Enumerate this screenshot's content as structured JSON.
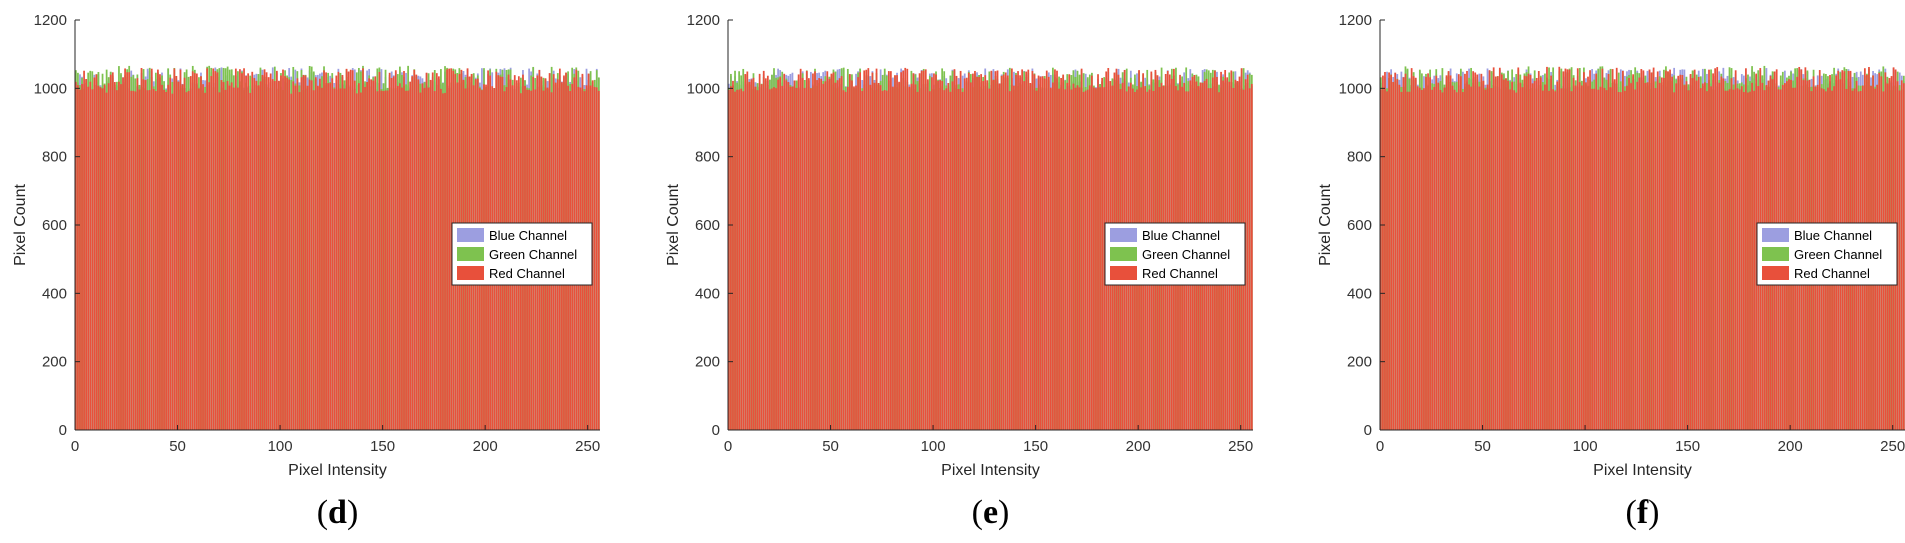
{
  "chart_data": [
    {
      "type": "bar",
      "panel_label": {
        "open": "(",
        "letter": "d",
        "close": ")"
      },
      "xlabel": "Pixel Intensity",
      "ylabel": "Pixel Count",
      "xlim": [
        0,
        256
      ],
      "ylim": [
        0,
        1200
      ],
      "xticks": [
        "0",
        "50",
        "100",
        "150",
        "200",
        "250"
      ],
      "yticks": [
        "0",
        "200",
        "400",
        "600",
        "800",
        "1000",
        "1200"
      ],
      "grid": false,
      "legend_position": "center-right",
      "bins": 256,
      "seed": 17,
      "series": [
        {
          "name": "Blue Channel",
          "color": "#9c9ee0",
          "mean": 1030,
          "spread": 32
        },
        {
          "name": "Green Channel",
          "color": "#7ec24f",
          "mean": 1030,
          "spread": 36
        },
        {
          "name": "Red Channel",
          "color": "#e8503b",
          "mean": 1022,
          "spread": 38
        }
      ]
    },
    {
      "type": "bar",
      "panel_label": {
        "open": "(",
        "letter": "e",
        "close": ")"
      },
      "xlabel": "Pixel Intensity",
      "ylabel": "Pixel Count",
      "xlim": [
        0,
        256
      ],
      "ylim": [
        0,
        1200
      ],
      "xticks": [
        "0",
        "50",
        "100",
        "150",
        "200",
        "250"
      ],
      "yticks": [
        "0",
        "200",
        "400",
        "600",
        "800",
        "1000",
        "1200"
      ],
      "grid": false,
      "legend_position": "center-right",
      "bins": 256,
      "seed": 53,
      "series": [
        {
          "name": "Blue Channel",
          "color": "#9c9ee0",
          "mean": 1028,
          "spread": 30
        },
        {
          "name": "Green Channel",
          "color": "#7ec24f",
          "mean": 1028,
          "spread": 34
        },
        {
          "name": "Red Channel",
          "color": "#e8503b",
          "mean": 1024,
          "spread": 36
        }
      ]
    },
    {
      "type": "bar",
      "panel_label": {
        "open": "(",
        "letter": "f",
        "close": ")"
      },
      "xlabel": "Pixel Intensity",
      "ylabel": "Pixel Count",
      "xlim": [
        0,
        256
      ],
      "ylim": [
        0,
        1200
      ],
      "xticks": [
        "0",
        "50",
        "100",
        "150",
        "200",
        "250"
      ],
      "yticks": [
        "0",
        "200",
        "400",
        "600",
        "800",
        "1000",
        "1200"
      ],
      "grid": false,
      "legend_position": "center-right",
      "bins": 256,
      "seed": 91,
      "series": [
        {
          "name": "Blue Channel",
          "color": "#9c9ee0",
          "mean": 1030,
          "spread": 30
        },
        {
          "name": "Green Channel",
          "color": "#7ec24f",
          "mean": 1030,
          "spread": 36
        },
        {
          "name": "Red Channel",
          "color": "#e8503b",
          "mean": 1025,
          "spread": 38
        }
      ]
    }
  ]
}
